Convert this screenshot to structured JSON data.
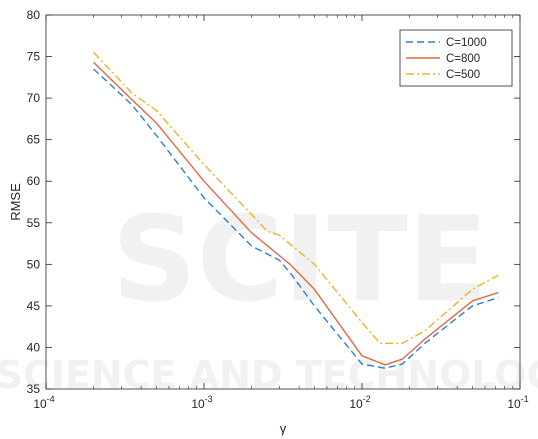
{
  "chart_data": {
    "type": "line",
    "title": "",
    "xlabel": "γ",
    "ylabel": "RMSE",
    "xscale": "log",
    "xlim": [
      0.0001,
      0.1
    ],
    "ylim": [
      35,
      80
    ],
    "xtick_values": [
      0.0001,
      0.001,
      0.01,
      0.1
    ],
    "xtick_labels": [
      {
        "base": "10",
        "exp": "-4"
      },
      {
        "base": "10",
        "exp": "-3"
      },
      {
        "base": "10",
        "exp": "-2"
      },
      {
        "base": "10",
        "exp": "-1"
      }
    ],
    "ytick_values": [
      35,
      40,
      45,
      50,
      55,
      60,
      65,
      70,
      75,
      80
    ],
    "grid": false,
    "legend_position": "top-right",
    "series": [
      {
        "name": "C=1000",
        "color": "#2f7fce",
        "dash": "dashed",
        "x": [
          0.0002,
          0.00035,
          0.0005,
          0.001,
          0.002,
          0.003,
          0.0035,
          0.005,
          0.01,
          0.014,
          0.018,
          0.025,
          0.05,
          0.073
        ],
        "y": [
          73.5,
          69.2,
          65.5,
          58.0,
          52.2,
          50.5,
          49.0,
          45.0,
          38.0,
          37.5,
          38.0,
          40.5,
          45.0,
          46.0
        ]
      },
      {
        "name": "C=800",
        "color": "#e06a45",
        "dash": "solid",
        "x": [
          0.0002,
          0.00035,
          0.0005,
          0.001,
          0.002,
          0.0035,
          0.005,
          0.01,
          0.014,
          0.018,
          0.025,
          0.05,
          0.073
        ],
        "y": [
          74.3,
          69.8,
          67.0,
          60.0,
          53.8,
          50.0,
          47.0,
          39.0,
          37.9,
          38.6,
          41.0,
          45.6,
          46.6
        ]
      },
      {
        "name": "C=500",
        "color": "#f0b324",
        "dash": "dashdot",
        "x": [
          0.0002,
          0.00035,
          0.0005,
          0.001,
          0.002,
          0.0025,
          0.003,
          0.005,
          0.01,
          0.013,
          0.018,
          0.025,
          0.05,
          0.073
        ],
        "y": [
          75.5,
          70.6,
          68.5,
          62.0,
          56.0,
          54.0,
          53.5,
          50.0,
          43.0,
          40.5,
          40.5,
          42.0,
          47.0,
          48.7
        ]
      }
    ]
  },
  "watermark": {
    "big": "SCITE",
    "small": "SCIENCE AND TECHNOLOGY"
  }
}
